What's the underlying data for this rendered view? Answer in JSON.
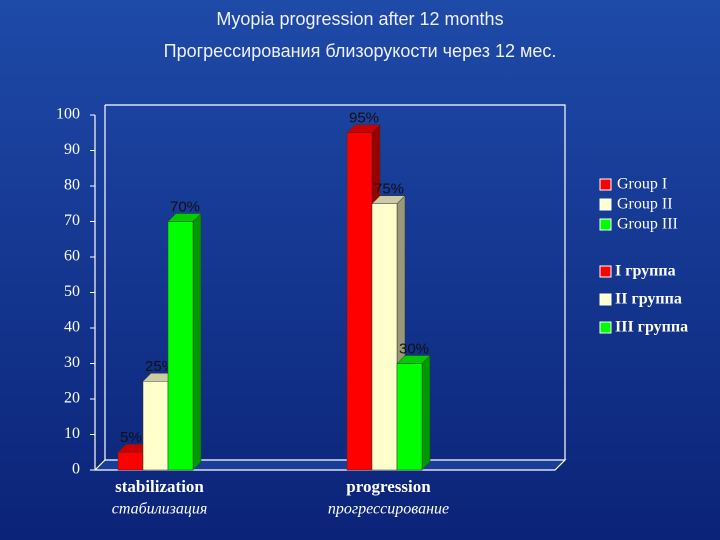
{
  "chart_data": {
    "type": "bar3d",
    "title": "Myopia progression after 12 months",
    "subtitle": "Прогрессирования близорукости через 12 мес.",
    "categories": [
      "stabilization",
      "progression"
    ],
    "categories_ru": [
      "стабилизация",
      "прогрессирование"
    ],
    "series": [
      {
        "name": "Group I",
        "name_ru": "I группа",
        "color": "#ff0000",
        "values": [
          5,
          95
        ],
        "value_labels": [
          "5%",
          "95%"
        ]
      },
      {
        "name": "Group II",
        "name_ru": "II группа",
        "color": "#ffffcc",
        "values": [
          25,
          75
        ],
        "value_labels": [
          "25%",
          "75%"
        ]
      },
      {
        "name": "Group III",
        "name_ru": "III группа",
        "color": "#00ff00",
        "values": [
          70,
          30
        ],
        "value_labels": [
          "70%",
          "30%"
        ]
      }
    ],
    "ylim": [
      0,
      100
    ],
    "yticks": [
      0,
      10,
      20,
      30,
      40,
      50,
      60,
      70,
      80,
      90,
      100
    ]
  }
}
